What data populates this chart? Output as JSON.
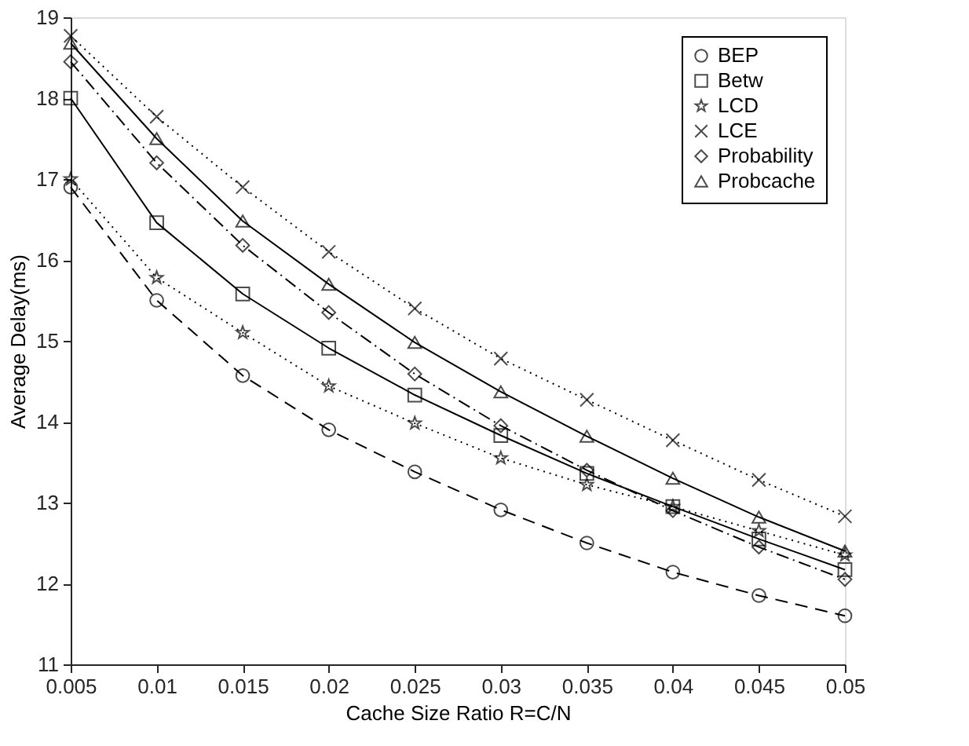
{
  "chart_data": {
    "type": "line",
    "xlabel": "Cache Size Ratio R=C/N",
    "ylabel": "Average Delay(ms)",
    "x": [
      0.005,
      0.01,
      0.015,
      0.02,
      0.025,
      0.03,
      0.035,
      0.04,
      0.045,
      0.05
    ],
    "xlim": [
      0.005,
      0.05
    ],
    "xticks": [
      0.005,
      0.01,
      0.015,
      0.02,
      0.025,
      0.03,
      0.035,
      0.04,
      0.045,
      0.05
    ],
    "ylim": [
      11,
      19
    ],
    "yticks": [
      11,
      12,
      13,
      14,
      15,
      16,
      17,
      18,
      19
    ],
    "grid": false,
    "legend": "top right",
    "series": [
      {
        "name": "BEP",
        "color": "#000000",
        "marker": "circle",
        "line_style": "dashed",
        "values": [
          16.9,
          15.5,
          14.57,
          13.9,
          13.38,
          12.91,
          12.5,
          12.14,
          11.85,
          11.6
        ]
      },
      {
        "name": "Betw",
        "color": "#000000",
        "marker": "square",
        "line_style": "solid",
        "values": [
          18.0,
          16.46,
          15.58,
          14.91,
          14.33,
          13.83,
          13.36,
          12.95,
          12.55,
          12.17
        ]
      },
      {
        "name": "LCD",
        "color": "#000000",
        "marker": "star",
        "line_style": "dotted",
        "values": [
          17.0,
          15.78,
          15.1,
          14.44,
          13.98,
          13.55,
          13.22,
          12.95,
          12.65,
          12.35
        ]
      },
      {
        "name": "LCE",
        "color": "#000000",
        "marker": "cross",
        "line_style": "dotted",
        "values": [
          18.77,
          17.77,
          16.9,
          16.1,
          15.4,
          14.78,
          14.27,
          13.77,
          13.28,
          12.83
        ]
      },
      {
        "name": "Probability",
        "color": "#000000",
        "marker": "diamond",
        "line_style": "dashdot",
        "values": [
          18.45,
          17.2,
          16.18,
          15.35,
          14.59,
          13.95,
          13.4,
          12.9,
          12.45,
          12.05
        ]
      },
      {
        "name": "Probcache",
        "color": "#000000",
        "marker": "triangle",
        "line_style": "solid",
        "values": [
          18.68,
          17.5,
          16.48,
          15.7,
          14.98,
          14.37,
          13.82,
          13.3,
          12.82,
          12.4
        ]
      }
    ]
  }
}
